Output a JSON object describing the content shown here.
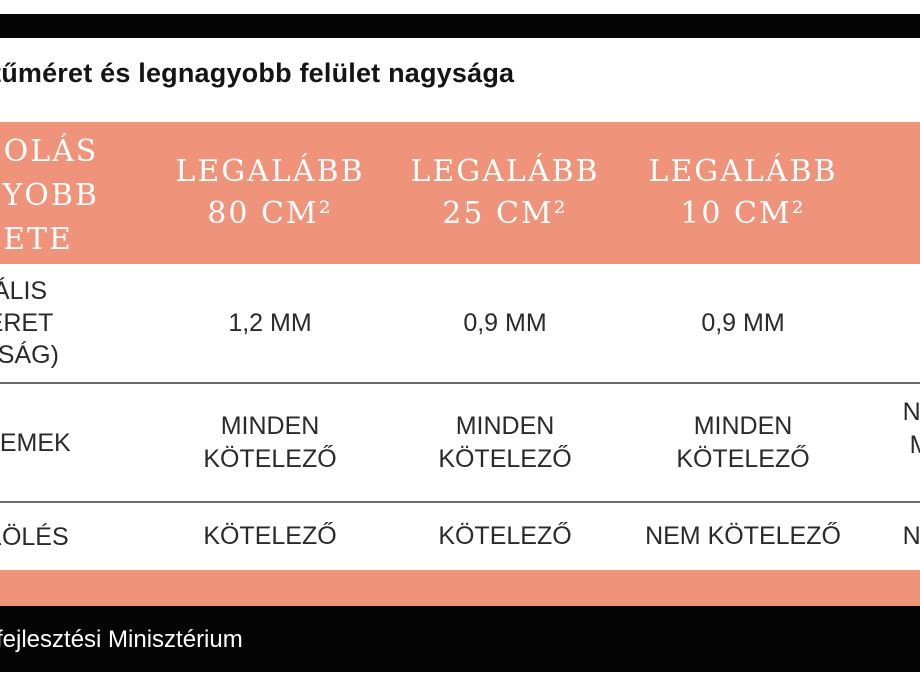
{
  "title": "tűméret és legnagyobb felület nagysága",
  "header": {
    "first": "GOLÁS\nGYOBB\nETE",
    "col1": "LEGALÁBB\n80 CM²",
    "col2": "LEGALÁBB\n25 CM²",
    "col3": "LEGALÁBB\n10 CM²"
  },
  "rows": [
    {
      "label": "ÁLIS\nÉRET\nSSÁG)",
      "c1": "1,2 MM",
      "c2": "0,9 MM",
      "c3": "0,9 MM",
      "c4": ""
    },
    {
      "label": "ELEMEK",
      "c1": "MINDEN\nKÖTELEZŐ",
      "c2": "MINDEN\nKÖTELEZŐ",
      "c3": "MINDEN\nKÖTELEZŐ",
      "c4": "NÉ\nM"
    },
    {
      "label": "ELÖLÉS",
      "c1": "KÖTELEZŐ",
      "c2": "KÖTELEZŐ",
      "c3": "NEM KÖTELEZŐ",
      "c4": "NE"
    }
  ],
  "footer": "fejlesztési Minisztérium",
  "colors": {
    "accent": "#ef937b",
    "bar": "#050505",
    "text": "#2a2a2a"
  }
}
